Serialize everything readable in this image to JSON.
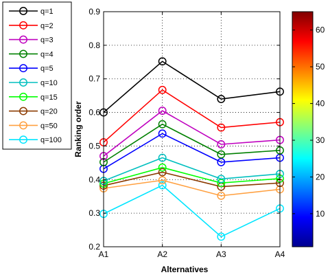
{
  "chart_data": {
    "type": "line",
    "xlabel": "Alternatives",
    "ylabel": "Ranking order",
    "categories": [
      "A1",
      "A2",
      "A3",
      "A4"
    ],
    "ylim": [
      0.2,
      0.9
    ],
    "yticks": [
      "0.2",
      "0.3",
      "0.4",
      "0.5",
      "0.6",
      "0.7",
      "0.8",
      "0.9"
    ],
    "grid": true,
    "legend_position": "top-left outside",
    "marker": "circle",
    "series": [
      {
        "name": "q=1",
        "color": "#000000",
        "values": [
          0.6,
          0.752,
          0.64,
          0.662
        ]
      },
      {
        "name": "q=2",
        "color": "#ff0000",
        "values": [
          0.511,
          0.667,
          0.555,
          0.571
        ]
      },
      {
        "name": "q=3",
        "color": "#bf00bf",
        "values": [
          0.47,
          0.605,
          0.505,
          0.518
        ]
      },
      {
        "name": "q=4",
        "color": "#008000",
        "values": [
          0.452,
          0.565,
          0.475,
          0.487
        ]
      },
      {
        "name": "q=5",
        "color": "#0000ff",
        "values": [
          0.432,
          0.537,
          0.452,
          0.465
        ]
      },
      {
        "name": "q=10",
        "color": "#00bfbf",
        "values": [
          0.396,
          0.465,
          0.402,
          0.417
        ]
      },
      {
        "name": "q=15",
        "color": "#00ff00",
        "values": [
          0.388,
          0.436,
          0.39,
          0.403
        ]
      },
      {
        "name": "q=20",
        "color": "#8b3a00",
        "values": [
          0.382,
          0.422,
          0.379,
          0.39
        ]
      },
      {
        "name": "q=50",
        "color": "#ffa040",
        "values": [
          0.374,
          0.398,
          0.352,
          0.371
        ]
      },
      {
        "name": "q=100",
        "color": "#00e5ff",
        "values": [
          0.298,
          0.383,
          0.23,
          0.314
        ]
      }
    ],
    "colorbar": {
      "range": [
        1,
        65
      ],
      "ticks": [
        "10",
        "20",
        "30",
        "40",
        "50",
        "60"
      ],
      "colormap": "jet"
    }
  }
}
